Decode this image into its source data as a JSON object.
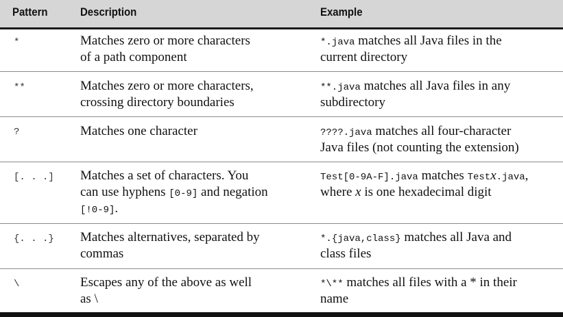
{
  "headers": {
    "pattern": "Pattern",
    "description": "Description",
    "example": "Example"
  },
  "rows": [
    {
      "pattern": "*",
      "desc": [
        "Matches zero or more characters",
        "of a path component"
      ],
      "ex": {
        "l1_code": "*.java",
        "l1_text": " matches all Java files in the",
        "l2_text": "current directory"
      }
    },
    {
      "pattern": "**",
      "desc": [
        "Matches zero or more characters,",
        "crossing directory boundaries"
      ],
      "ex": {
        "l1_code": "**.java",
        "l1_text": " matches all Java files in any",
        "l2_text": "subdirectory"
      }
    },
    {
      "pattern": "?",
      "desc": [
        "Matches one character"
      ],
      "ex": {
        "l1_code": "????.java",
        "l1_text": " matches all four-character",
        "l2_text": "Java files (not counting the extension)"
      }
    },
    {
      "pattern": "[. . .]",
      "desc": [
        "Matches a set of characters. You",
        "can use hyphens ",
        "[0-9]",
        " and negation",
        "[!0-9]",
        "."
      ],
      "ex": {
        "l1_code": "Test[0-9A-F].java",
        "l1_text": " matches ",
        "l1_code2": "Test",
        "l1_var": "x",
        "l1_code3": ".java",
        "l1_tail": ",",
        "l2_pre": "where ",
        "l2_var": "x",
        "l2_text": " is one hexadecimal digit"
      }
    },
    {
      "pattern": "{. . .}",
      "desc": [
        "Matches alternatives, separated by",
        "commas"
      ],
      "ex": {
        "l1_code": "*.{java,class}",
        "l1_text": " matches all Java and",
        "l2_text": "class files"
      }
    },
    {
      "pattern": "\\",
      "desc": [
        "Escapes any of the above as well",
        "as \\"
      ],
      "ex": {
        "l1_code": "*\\**",
        "l1_text": " matches all files with a * in their",
        "l2_text": "name"
      }
    }
  ]
}
